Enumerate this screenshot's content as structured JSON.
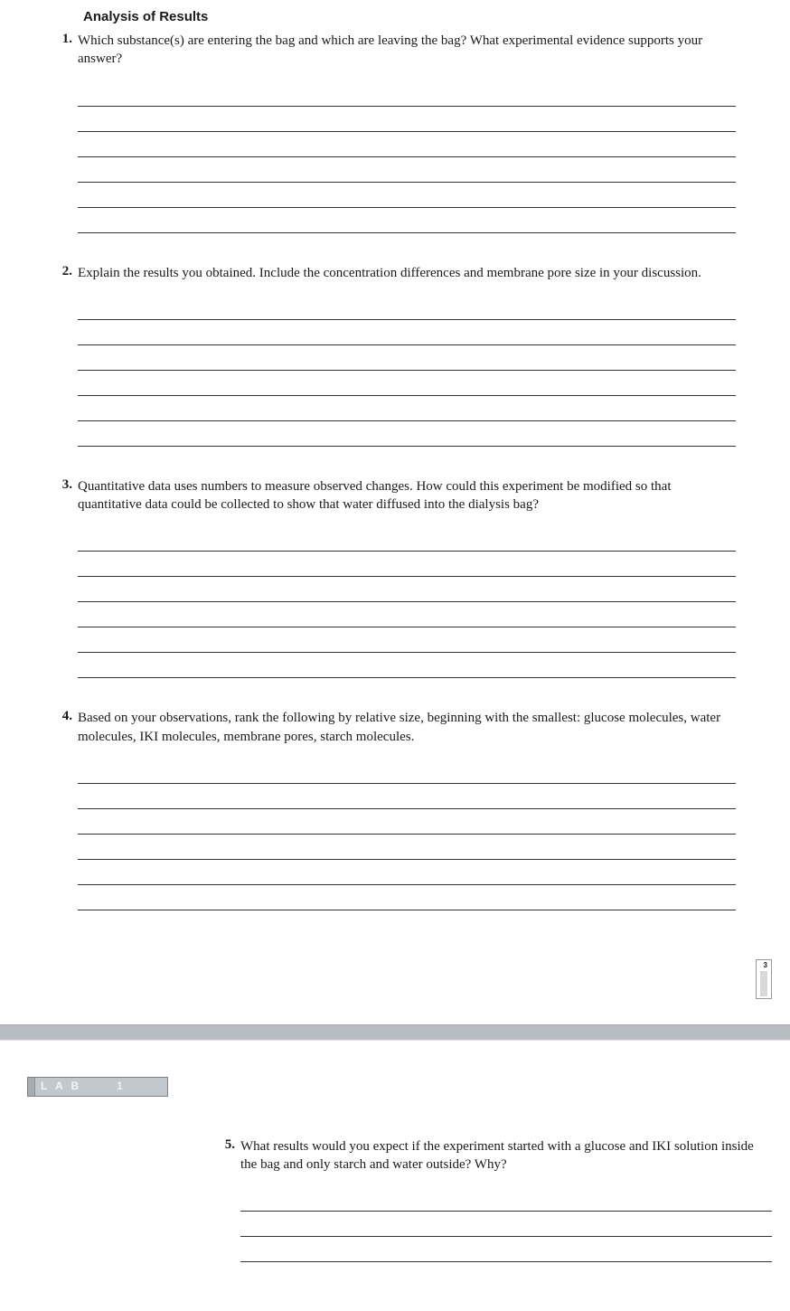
{
  "section_title": "Analysis of Results",
  "questions": [
    {
      "number": "1.",
      "text": "Which substance(s) are entering the bag and which are leaving the bag? What experimental evidence supports your answer?",
      "lines": 6
    },
    {
      "number": "2.",
      "text": "Explain the results you obtained. Include the concentration differences and membrane pore size in your discussion.",
      "lines": 6
    },
    {
      "number": "3.",
      "text": "Quantitative data uses numbers to measure observed changes. How could this experiment be modified so that quantitative data could be collected to show that water diffused into the dialysis bag?",
      "lines": 6
    },
    {
      "number": "4.",
      "text": "Based on your observations, rank the following by relative size, beginning with the smallest: glucose molecules, water molecules, IKI molecules, membrane pores, starch molecules.",
      "lines": 6
    }
  ],
  "page_tab_number": "3",
  "lab_badge": {
    "label": "L A B",
    "number": "1"
  },
  "question5": {
    "number": "5.",
    "text": "What results would you expect if the experiment started with a glucose and IKI solution inside the bag and only starch and water outside? Why?",
    "lines": 3
  }
}
